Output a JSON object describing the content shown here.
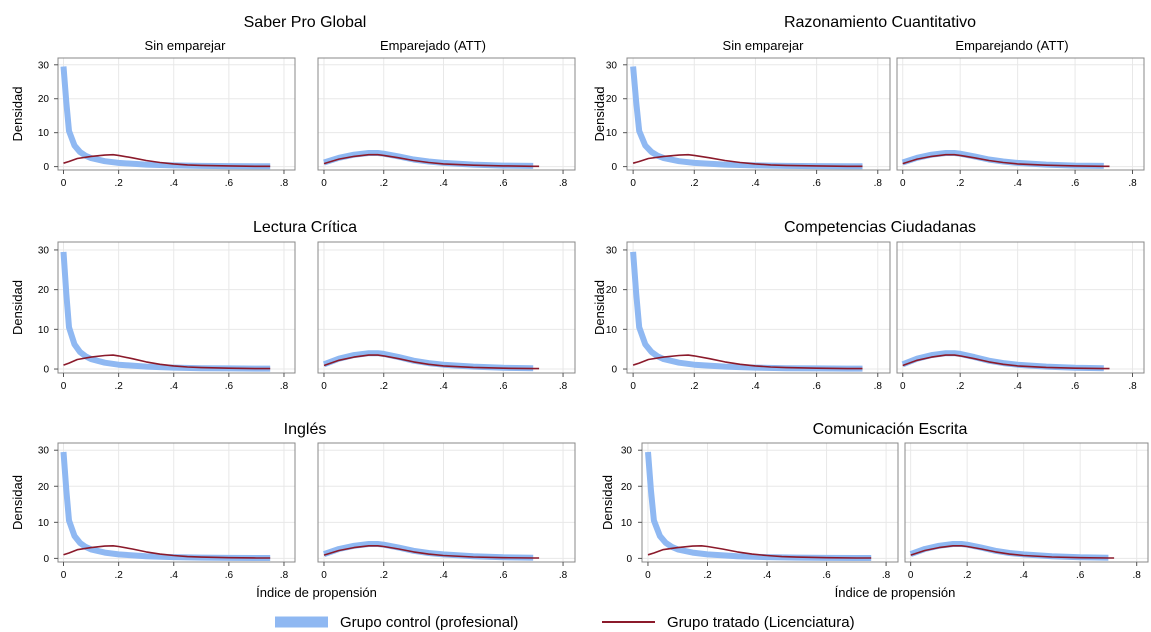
{
  "chart_data": {
    "type": "line",
    "colors": {
      "control": "#8fb8f2",
      "treated": "#8b1a2b",
      "panel_border": "#888888",
      "grid": "#e8e8e8"
    },
    "legend": {
      "placement": "bottom",
      "items": [
        {
          "key": "control",
          "label": "Grupo control (profesional)"
        },
        {
          "key": "treated",
          "label": "Grupo tratado (Licenciatura)"
        }
      ]
    },
    "xlabel": "Índice de propensión",
    "ylabel": "Densidad",
    "xticks": [
      0,
      0.2,
      0.4,
      0.6,
      0.8
    ],
    "xtick_labels": [
      "0",
      ".2",
      ".4",
      ".6",
      ".8"
    ],
    "yticks": [
      0,
      10,
      20,
      30
    ],
    "xlim": [
      -0.02,
      0.84
    ],
    "ylim": [
      -1,
      32
    ],
    "grid": true,
    "series_data": {
      "unmatched": {
        "control": {
          "x": [
            0,
            0.01,
            0.02,
            0.04,
            0.06,
            0.08,
            0.1,
            0.15,
            0.2,
            0.3,
            0.4,
            0.5,
            0.6,
            0.7,
            0.75
          ],
          "y": [
            29.5,
            19,
            10.5,
            6.2,
            4.3,
            3.2,
            2.5,
            1.6,
            1.1,
            0.6,
            0.35,
            0.22,
            0.15,
            0.1,
            0.1
          ]
        },
        "treated": {
          "x": [
            0,
            0.02,
            0.05,
            0.1,
            0.15,
            0.18,
            0.2,
            0.25,
            0.3,
            0.35,
            0.4,
            0.45,
            0.5,
            0.6,
            0.7,
            0.75
          ],
          "y": [
            1,
            1.5,
            2.4,
            3,
            3.4,
            3.5,
            3.3,
            2.6,
            1.8,
            1.2,
            0.8,
            0.5,
            0.35,
            0.2,
            0.1,
            0.1
          ]
        }
      },
      "matched": {
        "control": {
          "x": [
            0,
            0.05,
            0.1,
            0.15,
            0.18,
            0.2,
            0.25,
            0.3,
            0.35,
            0.4,
            0.5,
            0.6,
            0.7
          ],
          "y": [
            1.2,
            2.6,
            3.5,
            4,
            4,
            3.8,
            3,
            2.1,
            1.5,
            1.1,
            0.6,
            0.3,
            0.2
          ]
        },
        "treated": {
          "x": [
            0,
            0.05,
            0.1,
            0.15,
            0.18,
            0.2,
            0.25,
            0.3,
            0.35,
            0.4,
            0.5,
            0.6,
            0.7,
            0.72
          ],
          "y": [
            0.9,
            2.2,
            3,
            3.5,
            3.5,
            3.3,
            2.6,
            1.8,
            1.2,
            0.8,
            0.4,
            0.2,
            0.1,
            0.1
          ]
        }
      }
    },
    "groups": [
      {
        "title": "Saber Pro Global",
        "subtitles": [
          "Sin emparejar",
          "Emparejado (ATT)"
        ],
        "show_xlabel": false
      },
      {
        "title": "Razonamiento Cuantitativo",
        "subtitles": [
          "Sin emparejar",
          "Emparejando (ATT)"
        ],
        "show_xlabel": false
      },
      {
        "title": "Lectura Crítica",
        "subtitles": [
          "",
          ""
        ],
        "show_xlabel": false
      },
      {
        "title": "Competencias Ciudadanas",
        "subtitles": [
          "",
          ""
        ],
        "show_xlabel": false
      },
      {
        "title": "Inglés",
        "subtitles": [
          "",
          ""
        ],
        "show_xlabel": true
      },
      {
        "title": "Comunicación Escrita",
        "subtitles": [
          "",
          ""
        ],
        "show_xlabel": true
      }
    ]
  }
}
